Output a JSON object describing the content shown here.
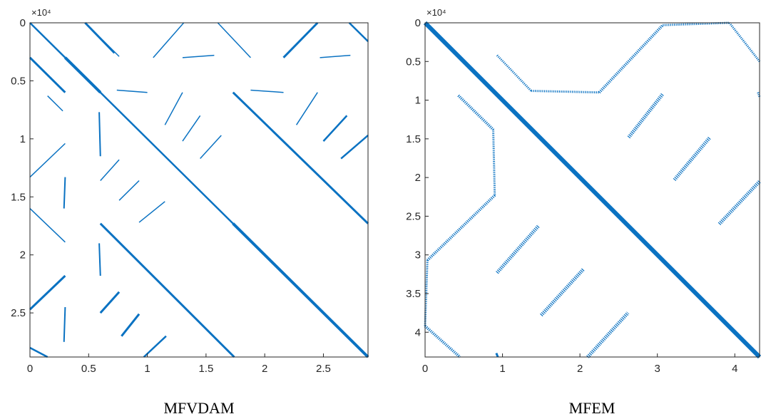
{
  "colors": {
    "marker": "#0a72c2",
    "axis": "#262626"
  },
  "chart_data": [
    {
      "type": "spy",
      "caption": "MFVDAM",
      "exponent_label": "×10⁴",
      "xlim": [
        0,
        2.88
      ],
      "ylim": [
        0,
        2.88
      ],
      "y_reversed": true,
      "xticks": [
        {
          "v": 0,
          "label": "0"
        },
        {
          "v": 0.5,
          "label": "0.5"
        },
        {
          "v": 1,
          "label": "1"
        },
        {
          "v": 1.5,
          "label": "1.5"
        },
        {
          "v": 2,
          "label": "2"
        },
        {
          "v": 2.5,
          "label": "2.5"
        }
      ],
      "yticks": [
        {
          "v": 0,
          "label": "0"
        },
        {
          "v": 0.5,
          "label": "0.5"
        },
        {
          "v": 1,
          "label": "1"
        },
        {
          "v": 1.5,
          "label": "1.5"
        },
        {
          "v": 2,
          "label": "2"
        },
        {
          "v": 2.5,
          "label": "2.5"
        }
      ],
      "segments": [
        {
          "x1": 0,
          "y1": 0,
          "x2": 2.88,
          "y2": 2.88,
          "w": 2.5
        },
        {
          "x1": 0.3,
          "y1": 0.3,
          "x2": 0.6,
          "y2": 0.6,
          "w": 4
        },
        {
          "x1": 1.73,
          "y1": 1.73,
          "x2": 2.88,
          "y2": 2.88,
          "w": 4
        },
        {
          "x1": 0.47,
          "y1": 0,
          "x2": 0.72,
          "y2": 0.26,
          "w": 3
        },
        {
          "x1": 0.62,
          "y1": 0.15,
          "x2": 0.76,
          "y2": 0.29,
          "w": 1.5
        },
        {
          "x1": 0,
          "y1": 0.3,
          "x2": 0.3,
          "y2": 0.6,
          "w": 3
        },
        {
          "x1": 0.15,
          "y1": 0.63,
          "x2": 0.28,
          "y2": 0.76,
          "w": 1.5
        },
        {
          "x1": 0,
          "y1": 1.6,
          "x2": 0.3,
          "y2": 1.89,
          "w": 1.5
        },
        {
          "x1": 0,
          "y1": 2.8,
          "x2": 0.15,
          "y2": 2.88,
          "w": 2.5
        },
        {
          "x1": 0.6,
          "y1": 1.73,
          "x2": 1.74,
          "y2": 2.88,
          "w": 3
        },
        {
          "x1": 0.6,
          "y1": 0.6,
          "x2": 2.88,
          "y2": 2.88,
          "w": 0
        },
        {
          "x1": 1.73,
          "y1": 0.6,
          "x2": 2.88,
          "y2": 1.73,
          "w": 3
        },
        {
          "x1": 1.6,
          "y1": 0,
          "x2": 1.88,
          "y2": 0.3,
          "w": 1.5
        },
        {
          "x1": 2.72,
          "y1": 0,
          "x2": 2.88,
          "y2": 0.16,
          "w": 2.5
        },
        {
          "x1": 1.05,
          "y1": 0.3,
          "x2": 1.31,
          "y2": 0,
          "w": 1.5
        },
        {
          "x1": 0.4,
          "y1": 0.3,
          "x2": 0.5,
          "y2": 0.2,
          "w": 0
        },
        {
          "x1": 2.16,
          "y1": 0.3,
          "x2": 2.45,
          "y2": 0,
          "w": 3
        },
        {
          "x1": 1.3,
          "y1": 0.3,
          "x2": 1.57,
          "y2": 0.28,
          "w": 1.5
        },
        {
          "x1": 2.47,
          "y1": 0.3,
          "x2": 2.73,
          "y2": 0.28,
          "w": 1.5
        },
        {
          "x1": 0.74,
          "y1": 0.58,
          "x2": 1.0,
          "y2": 0.6,
          "w": 1.5
        },
        {
          "x1": 1.88,
          "y1": 0.58,
          "x2": 2.16,
          "y2": 0.6,
          "w": 1.5
        },
        {
          "x1": 1.15,
          "y1": 0.88,
          "x2": 1.3,
          "y2": 0.6,
          "w": 1.5
        },
        {
          "x1": 2.27,
          "y1": 0.88,
          "x2": 2.45,
          "y2": 0.6,
          "w": 1.5
        },
        {
          "x1": 1.3,
          "y1": 1.02,
          "x2": 1.45,
          "y2": 0.8,
          "w": 1.5
        },
        {
          "x1": 2.5,
          "y1": 1.02,
          "x2": 2.7,
          "y2": 0.8,
          "w": 2.5
        },
        {
          "x1": 1.45,
          "y1": 1.17,
          "x2": 1.63,
          "y2": 0.97,
          "w": 1.5
        },
        {
          "x1": 2.65,
          "y1": 1.17,
          "x2": 2.88,
          "y2": 0.97,
          "w": 2.5
        },
        {
          "x1": 0,
          "y1": 1.33,
          "x2": 0.3,
          "y2": 1.04,
          "w": 1.5
        },
        {
          "x1": 0.59,
          "y1": 0.77,
          "x2": 0.6,
          "y2": 1.15,
          "w": 2
        },
        {
          "x1": 0.6,
          "y1": 1.36,
          "x2": 0.76,
          "y2": 1.18,
          "w": 1.5
        },
        {
          "x1": 0.76,
          "y1": 1.53,
          "x2": 0.93,
          "y2": 1.36,
          "w": 1.5
        },
        {
          "x1": 0.93,
          "y1": 1.72,
          "x2": 1.15,
          "y2": 1.54,
          "w": 1.5
        },
        {
          "x1": 0.3,
          "y1": 1.33,
          "x2": 0.29,
          "y2": 1.6,
          "w": 2
        },
        {
          "x1": 0.59,
          "y1": 1.9,
          "x2": 0.6,
          "y2": 2.18,
          "w": 2
        },
        {
          "x1": 0,
          "y1": 2.47,
          "x2": 0.3,
          "y2": 2.18,
          "w": 3
        },
        {
          "x1": 0.3,
          "y1": 2.45,
          "x2": 0.29,
          "y2": 2.75,
          "w": 2
        },
        {
          "x1": 0.6,
          "y1": 2.5,
          "x2": 0.76,
          "y2": 2.32,
          "w": 3
        },
        {
          "x1": 0.78,
          "y1": 2.7,
          "x2": 0.93,
          "y2": 2.51,
          "w": 3
        },
        {
          "x1": 0.97,
          "y1": 2.88,
          "x2": 1.16,
          "y2": 2.7,
          "w": 2.5
        }
      ]
    },
    {
      "type": "spy",
      "caption": "MFEM",
      "exponent_label": "×10⁴",
      "xlim": [
        0,
        4.32
      ],
      "ylim": [
        0,
        4.32
      ],
      "y_reversed": true,
      "xticks": [
        {
          "v": 0,
          "label": "0"
        },
        {
          "v": 1,
          "label": "1"
        },
        {
          "v": 2,
          "label": "2"
        },
        {
          "v": 3,
          "label": "3"
        },
        {
          "v": 4,
          "label": "4"
        }
      ],
      "yticks": [
        {
          "v": 0,
          "label": "0"
        },
        {
          "v": 0.5,
          "label": "0.5"
        },
        {
          "v": 1,
          "label": "1"
        },
        {
          "v": 1.5,
          "label": "1.5"
        },
        {
          "v": 2,
          "label": "2"
        },
        {
          "v": 2.5,
          "label": "2.5"
        },
        {
          "v": 3,
          "label": "3"
        },
        {
          "v": 3.5,
          "label": "3.5"
        },
        {
          "v": 4,
          "label": "4"
        }
      ],
      "segments": [
        {
          "x1": 0,
          "y1": 0,
          "x2": 4.32,
          "y2": 4.32,
          "w": 6
        },
        {
          "x1": 0.93,
          "y1": 0.42,
          "x2": 1.37,
          "y2": 0.88,
          "w": 3,
          "d": true
        },
        {
          "x1": 1.37,
          "y1": 0.88,
          "x2": 2.25,
          "y2": 0.9,
          "w": 3,
          "d": true
        },
        {
          "x1": 2.25,
          "y1": 0.9,
          "x2": 3.07,
          "y2": 0.03,
          "w": 4,
          "d": true
        },
        {
          "x1": 3.07,
          "y1": 0.03,
          "x2": 3.93,
          "y2": 0.0,
          "w": 3,
          "d": true
        },
        {
          "x1": 3.93,
          "y1": 0.0,
          "x2": 4.32,
          "y2": 0.5,
          "w": 3,
          "d": true
        },
        {
          "x1": 0.43,
          "y1": 0.94,
          "x2": 0.88,
          "y2": 1.38,
          "w": 4,
          "d": true
        },
        {
          "x1": 0.88,
          "y1": 1.38,
          "x2": 0.9,
          "y2": 2.23,
          "w": 3,
          "d": true
        },
        {
          "x1": 0.9,
          "y1": 2.23,
          "x2": 0.03,
          "y2": 3.07,
          "w": 4,
          "d": true
        },
        {
          "x1": 0.03,
          "y1": 3.07,
          "x2": 0.0,
          "y2": 3.92,
          "w": 3,
          "d": true
        },
        {
          "x1": 0.0,
          "y1": 3.92,
          "x2": 0.45,
          "y2": 4.32,
          "w": 4,
          "d": true
        },
        {
          "x1": 2.63,
          "y1": 1.48,
          "x2": 3.07,
          "y2": 0.92,
          "w": 5,
          "d": true
        },
        {
          "x1": 3.22,
          "y1": 2.03,
          "x2": 3.68,
          "y2": 1.48,
          "w": 5,
          "d": true
        },
        {
          "x1": 3.8,
          "y1": 2.6,
          "x2": 4.32,
          "y2": 2.05,
          "w": 5,
          "d": true
        },
        {
          "x1": 0.93,
          "y1": 3.23,
          "x2": 1.47,
          "y2": 2.62,
          "w": 5,
          "d": true
        },
        {
          "x1": 1.5,
          "y1": 3.78,
          "x2": 2.05,
          "y2": 3.18,
          "w": 5,
          "d": true
        },
        {
          "x1": 2.1,
          "y1": 4.32,
          "x2": 2.62,
          "y2": 3.75,
          "w": 5,
          "d": true
        },
        {
          "x1": 4.3,
          "y1": 0.9,
          "x2": 4.32,
          "y2": 0.96,
          "w": 3,
          "d": true
        },
        {
          "x1": 0.92,
          "y1": 4.27,
          "x2": 0.94,
          "y2": 4.32,
          "w": 3
        },
        {
          "x1": 0,
          "y1": 0,
          "x2": 0.02,
          "y2": 0.02,
          "w": 0
        }
      ]
    }
  ]
}
